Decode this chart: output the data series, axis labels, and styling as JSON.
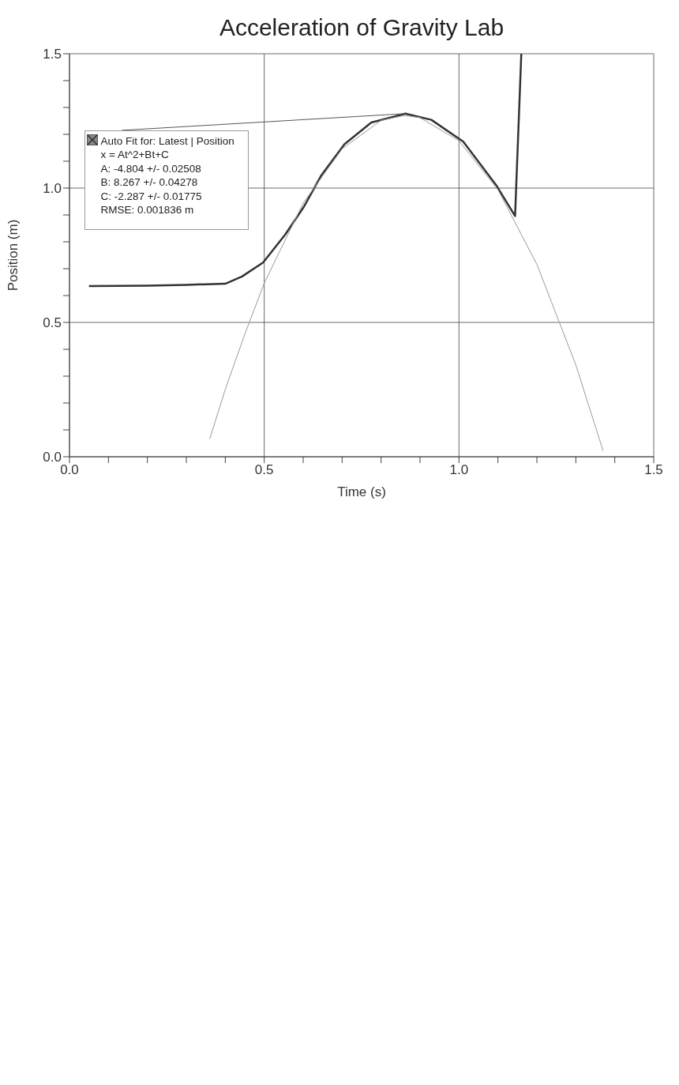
{
  "chart_data": {
    "type": "line",
    "title": "Acceleration of Gravity Lab",
    "xlabel": "Time (s)",
    "ylabel": "Position (m)",
    "xlim": [
      0,
      1.5
    ],
    "ylim": [
      0,
      1.5
    ],
    "xticks": [
      {
        "value": 0,
        "label": "0.0"
      },
      {
        "value": 0.1,
        "label": null
      },
      {
        "value": 0.2,
        "label": null
      },
      {
        "value": 0.3,
        "label": null
      },
      {
        "value": 0.4,
        "label": null
      },
      {
        "value": 0.5,
        "label": "0.5"
      },
      {
        "value": 0.6,
        "label": null
      },
      {
        "value": 0.7,
        "label": null
      },
      {
        "value": 0.8,
        "label": null
      },
      {
        "value": 0.9,
        "label": null
      },
      {
        "value": 1,
        "label": "1.0"
      },
      {
        "value": 1.1,
        "label": null
      },
      {
        "value": 1.2,
        "label": null
      },
      {
        "value": 1.3,
        "label": null
      },
      {
        "value": 1.4,
        "label": null
      },
      {
        "value": 1.5,
        "label": "1.5"
      }
    ],
    "yticks": [
      {
        "value": 0,
        "label": "0.0"
      },
      {
        "value": 0.1,
        "label": null
      },
      {
        "value": 0.2,
        "label": null
      },
      {
        "value": 0.3,
        "label": null
      },
      {
        "value": 0.4,
        "label": null
      },
      {
        "value": 0.5,
        "label": "0.5"
      },
      {
        "value": 0.6,
        "label": null
      },
      {
        "value": 0.7,
        "label": null
      },
      {
        "value": 0.8,
        "label": null
      },
      {
        "value": 0.9,
        "label": null
      },
      {
        "value": 1,
        "label": "1.0"
      },
      {
        "value": 1.1,
        "label": null
      },
      {
        "value": 1.2,
        "label": null
      },
      {
        "value": 1.3,
        "label": null
      },
      {
        "value": 1.4,
        "label": null
      },
      {
        "value": 1.5,
        "label": "1.5"
      }
    ],
    "grid": true,
    "marker": "none",
    "line_style": "solid",
    "series": [
      {
        "color": "#333333",
        "x": [
          0.05,
          0.2,
          0.3,
          0.4,
          0.443,
          0.497,
          0.554,
          0.602,
          0.646,
          0.706,
          0.775,
          0.862,
          0.929,
          1.011,
          1.095,
          1.144,
          1.16
        ],
        "values": [
          0.635,
          0.637,
          0.64,
          0.644,
          0.671,
          0.723,
          0.827,
          0.931,
          1.046,
          1.163,
          1.244,
          1.277,
          1.254,
          1.173,
          1.012,
          0.896,
          1.5
        ]
      },
      {
        "color": "#9a9a9a",
        "x": [
          0.36,
          0.4,
          0.45,
          0.5,
          0.6,
          0.7,
          0.8,
          0.86,
          0.9,
          1.0,
          1.1,
          1.2,
          1.3,
          1.37
        ],
        "values": [
          0.066,
          0.251,
          0.456,
          0.646,
          0.944,
          1.146,
          1.252,
          1.27,
          1.262,
          1.176,
          0.994,
          0.716,
          0.342,
          0.022
        ]
      }
    ],
    "annotations": [
      {
        "text": "Auto Fit for: Latest | Position\nx = At^2+Bt+C\nA: -4.804 +/- 0.02508\nB: 8.267 +/- 0.04278\nC: -2.287 +/- 0.01775\nRMSE: 0.001836 m",
        "x": 0.862,
        "y": 1.277
      }
    ]
  }
}
